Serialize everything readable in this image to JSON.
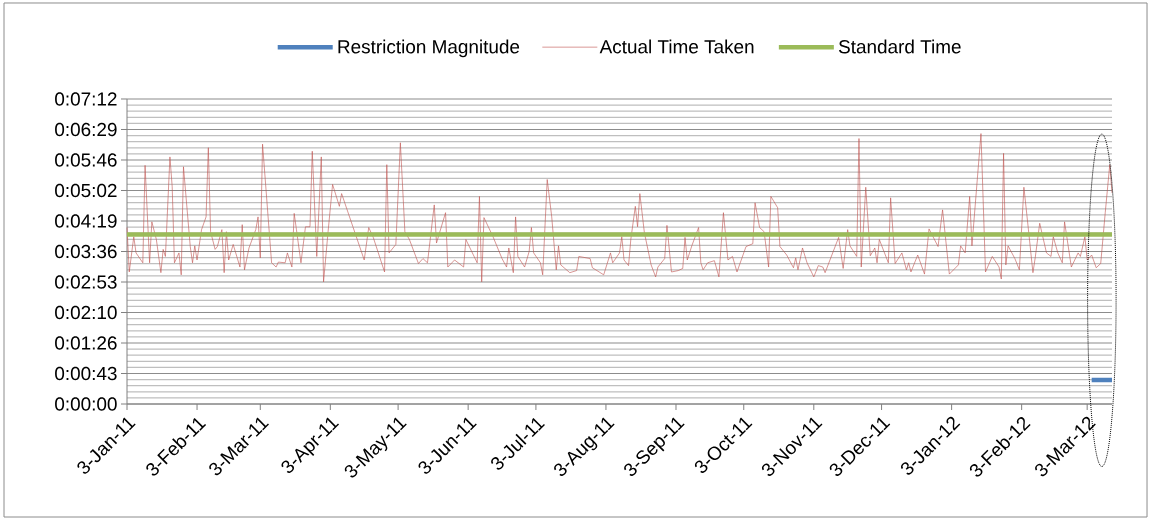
{
  "chart_data": {
    "type": "line",
    "xlim": [
      "2011-01-03",
      "2012-03-14"
    ],
    "xticks": [
      {
        "value": "2011-01-03",
        "label": "3-Jan-11"
      },
      {
        "value": "2011-02-03",
        "label": "3-Feb-11"
      },
      {
        "value": "2011-03-03",
        "label": "3-Mar-11"
      },
      {
        "value": "2011-04-03",
        "label": "3-Apr-11"
      },
      {
        "value": "2011-05-03",
        "label": "3-May-11"
      },
      {
        "value": "2011-06-03",
        "label": "3-Jun-11"
      },
      {
        "value": "2011-07-03",
        "label": "3-Jul-11"
      },
      {
        "value": "2011-08-03",
        "label": "3-Aug-11"
      },
      {
        "value": "2011-09-03",
        "label": "3-Sep-11"
      },
      {
        "value": "2011-10-03",
        "label": "3-Oct-11"
      },
      {
        "value": "2011-11-03",
        "label": "3-Nov-11"
      },
      {
        "value": "2011-12-03",
        "label": "3-Dec-11"
      },
      {
        "value": "2012-01-03",
        "label": "3-Jan-12"
      },
      {
        "value": "2012-02-03",
        "label": "3-Feb-12"
      },
      {
        "value": "2012-03-03",
        "label": "3-Mar-12"
      }
    ],
    "ylim": [
      0,
      432
    ],
    "yticks": [
      {
        "value": 0,
        "label": "0:00:00"
      },
      {
        "value": 43.2,
        "label": "0:00:43"
      },
      {
        "value": 86.4,
        "label": "0:01:26"
      },
      {
        "value": 129.6,
        "label": "0:02:10"
      },
      {
        "value": 172.8,
        "label": "0:02:53"
      },
      {
        "value": 216,
        "label": "0:03:36"
      },
      {
        "value": 259.2,
        "label": "0:04:19"
      },
      {
        "value": 302.4,
        "label": "0:05:02"
      },
      {
        "value": 345.6,
        "label": "0:05:46"
      },
      {
        "value": 388.8,
        "label": "0:06:29"
      },
      {
        "value": 432,
        "label": "0:07:12"
      }
    ],
    "grid": "y",
    "legend": "top",
    "series": [
      {
        "name": "Restriction Magnitude",
        "color": "#4f81bd",
        "x": [
          "2012-03-05",
          "2012-03-14"
        ],
        "values": [
          34,
          34
        ]
      },
      {
        "name": "Actual Time Taken",
        "color": "#c0504d",
        "x": [
          "2011-01-03",
          "2011-01-04",
          "2011-01-06",
          "2011-01-07",
          "2011-01-10",
          "2011-01-11",
          "2011-01-13",
          "2011-01-14",
          "2011-01-16",
          "2011-01-18",
          "2011-01-19",
          "2011-01-20",
          "2011-01-22",
          "2011-01-23",
          "2011-01-24",
          "2011-01-26",
          "2011-01-27",
          "2011-01-28",
          "2011-01-31",
          "2011-02-01",
          "2011-02-02",
          "2011-02-03",
          "2011-02-05",
          "2011-02-07",
          "2011-02-08",
          "2011-02-09",
          "2011-02-11",
          "2011-02-12",
          "2011-02-14",
          "2011-02-15",
          "2011-02-16",
          "2011-02-17",
          "2011-02-19",
          "2011-02-22",
          "2011-02-23",
          "2011-02-24",
          "2011-02-26",
          "2011-03-01",
          "2011-03-02",
          "2011-03-03",
          "2011-03-04",
          "2011-03-08",
          "2011-03-10",
          "2011-03-11",
          "2011-03-14",
          "2011-03-15",
          "2011-03-17",
          "2011-03-18",
          "2011-03-19",
          "2011-03-21",
          "2011-03-23",
          "2011-03-25",
          "2011-03-26",
          "2011-03-28",
          "2011-03-30",
          "2011-03-31",
          "2011-04-02",
          "2011-04-04",
          "2011-04-07",
          "2011-04-08",
          "2011-04-13",
          "2011-04-18",
          "2011-04-20",
          "2011-04-22",
          "2011-04-27",
          "2011-04-28",
          "2011-04-29",
          "2011-05-02",
          "2011-05-04",
          "2011-05-06",
          "2011-05-08",
          "2011-05-12",
          "2011-05-14",
          "2011-05-16",
          "2011-05-19",
          "2011-05-20",
          "2011-05-24",
          "2011-05-25",
          "2011-05-28",
          "2011-06-01",
          "2011-06-02",
          "2011-06-07",
          "2011-06-08",
          "2011-06-09",
          "2011-06-10",
          "2011-06-14",
          "2011-06-18",
          "2011-06-20",
          "2011-06-21",
          "2011-06-23",
          "2011-06-24",
          "2011-06-25",
          "2011-06-28",
          "2011-06-30",
          "2011-07-01",
          "2011-07-02",
          "2011-07-05",
          "2011-07-06",
          "2011-07-08",
          "2011-07-10",
          "2011-07-12",
          "2011-07-13",
          "2011-07-14",
          "2011-07-18",
          "2011-07-21",
          "2011-07-22",
          "2011-07-27",
          "2011-07-28",
          "2011-08-02",
          "2011-08-05",
          "2011-08-06",
          "2011-08-09",
          "2011-08-10",
          "2011-08-11",
          "2011-08-13",
          "2011-08-14",
          "2011-08-16",
          "2011-08-17",
          "2011-08-18",
          "2011-08-20",
          "2011-08-23",
          "2011-08-25",
          "2011-08-26",
          "2011-08-29",
          "2011-08-30",
          "2011-09-01",
          "2011-09-04",
          "2011-09-06",
          "2011-09-07",
          "2011-09-08",
          "2011-09-10",
          "2011-09-13",
          "2011-09-14",
          "2011-09-15",
          "2011-09-17",
          "2011-09-20",
          "2011-09-22",
          "2011-09-24",
          "2011-09-26",
          "2011-09-28",
          "2011-09-30",
          "2011-10-04",
          "2011-10-07",
          "2011-10-08",
          "2011-10-10",
          "2011-10-12",
          "2011-10-14",
          "2011-10-15",
          "2011-10-18",
          "2011-10-19",
          "2011-10-22",
          "2011-10-25",
          "2011-10-26",
          "2011-10-27",
          "2011-10-29",
          "2011-10-31",
          "2011-11-03",
          "2011-11-05",
          "2011-11-07",
          "2011-11-08",
          "2011-11-14",
          "2011-11-16",
          "2011-11-18",
          "2011-11-19",
          "2011-11-22",
          "2011-11-23",
          "2011-11-24",
          "2011-11-26",
          "2011-11-28",
          "2011-11-30",
          "2011-12-01",
          "2011-12-02",
          "2011-12-06",
          "2011-12-07",
          "2011-12-09",
          "2011-12-12",
          "2011-12-14",
          "2011-12-15",
          "2011-12-16",
          "2011-12-19",
          "2011-12-22",
          "2011-12-24",
          "2011-12-28",
          "2011-12-30",
          "2012-01-02",
          "2012-01-06",
          "2012-01-07",
          "2012-01-09",
          "2012-01-11",
          "2012-01-12",
          "2012-01-16",
          "2012-01-18",
          "2012-01-21",
          "2012-01-24",
          "2012-01-25",
          "2012-01-26",
          "2012-01-27",
          "2012-01-28",
          "2012-01-31",
          "2012-02-02",
          "2012-02-04",
          "2012-02-06",
          "2012-02-08",
          "2012-02-09",
          "2012-02-11",
          "2012-02-14",
          "2012-02-16",
          "2012-02-17",
          "2012-02-19",
          "2012-02-21",
          "2012-02-22",
          "2012-02-25",
          "2012-02-28",
          "2012-02-29",
          "2012-03-02",
          "2012-03-03",
          "2012-03-05",
          "2012-03-07",
          "2012-03-09",
          "2012-03-11",
          "2012-03-13",
          "2012-03-14"
        ],
        "values": [
          250,
          187,
          237,
          214,
          200,
          338,
          200,
          258,
          233,
          186,
          219,
          209,
          350,
          308,
          200,
          214,
          183,
          336,
          223,
          200,
          224,
          204,
          247,
          265,
          363,
          244,
          219,
          223,
          247,
          186,
          244,
          204,
          226,
          194,
          254,
          190,
          221,
          247,
          265,
          207,
          368,
          200,
          194,
          201,
          200,
          214,
          194,
          270,
          247,
          200,
          251,
          251,
          358,
          209,
          350,
          173,
          244,
          311,
          280,
          298,
          251,
          204,
          250,
          236,
          187,
          339,
          214,
          226,
          370,
          244,
          233,
          199,
          206,
          200,
          282,
          228,
          271,
          194,
          204,
          194,
          233,
          200,
          294,
          173,
          264,
          237,
          206,
          194,
          221,
          186,
          265,
          209,
          194,
          216,
          250,
          214,
          200,
          183,
          318,
          265,
          190,
          224,
          197,
          186,
          189,
          209,
          206,
          193,
          183,
          214,
          200,
          214,
          237,
          204,
          196,
          233,
          280,
          251,
          298,
          243,
          197,
          180,
          194,
          206,
          253,
          187,
          189,
          192,
          236,
          204,
          224,
          250,
          200,
          190,
          200,
          203,
          180,
          271,
          204,
          209,
          187,
          223,
          227,
          285,
          250,
          244,
          194,
          294,
          278,
          223,
          211,
          193,
          207,
          190,
          221,
          200,
          180,
          196,
          194,
          186,
          236,
          192,
          247,
          224,
          209,
          376,
          194,
          307,
          210,
          221,
          200,
          233,
          200,
          292,
          199,
          214,
          190,
          200,
          187,
          211,
          184,
          248,
          223,
          275,
          184,
          197,
          224,
          214,
          294,
          224,
          383,
          187,
          209,
          194,
          177,
          355,
          197,
          224,
          206,
          190,
          307,
          247,
          186,
          207,
          256,
          214,
          209,
          237,
          214,
          200,
          258,
          194,
          214,
          209,
          237,
          204,
          211,
          193,
          199,
          271,
          339,
          299
        ]
      },
      {
        "name": "Standard Time",
        "color": "#9bbb59",
        "x": [
          "2011-01-03",
          "2012-03-14"
        ],
        "values": [
          240,
          240
        ]
      }
    ]
  }
}
